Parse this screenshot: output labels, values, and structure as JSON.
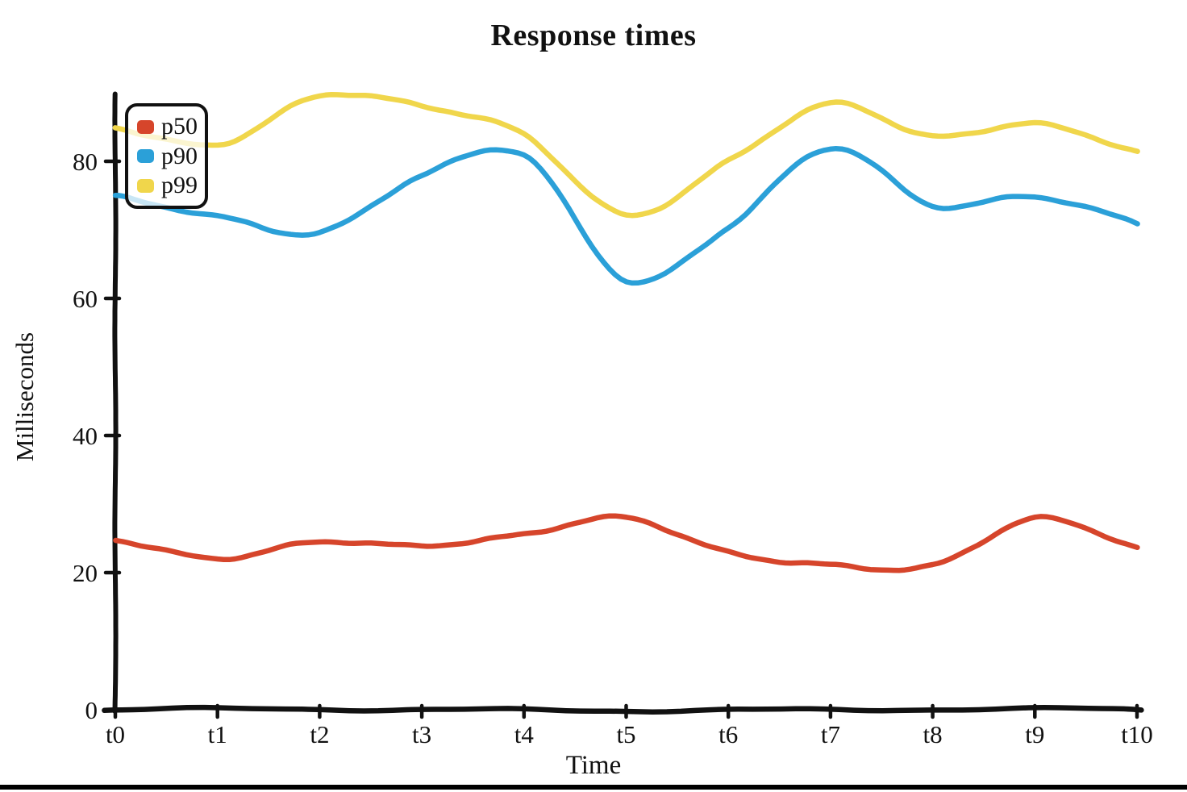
{
  "background": "#ffffff",
  "axis_color": "#111111",
  "chart_data": {
    "type": "line",
    "style": "xkcd-sketch",
    "title": "Response times",
    "xlabel": "Time",
    "ylabel": "Milliseconds",
    "categories": [
      "t0",
      "t1",
      "t2",
      "t3",
      "t4",
      "t5",
      "t6",
      "t7",
      "t8",
      "t9",
      "t10"
    ],
    "yticks": [
      0,
      20,
      40,
      60,
      80
    ],
    "ylim": [
      0,
      90
    ],
    "grid": false,
    "legend": {
      "position": "upper-left",
      "entries": [
        "p50",
        "p90",
        "p99"
      ]
    },
    "series": [
      {
        "name": "p50",
        "color": "#d6452b",
        "values": [
          25,
          22,
          24.5,
          24,
          25.5,
          28,
          23,
          21,
          21,
          28,
          23.5
        ]
      },
      {
        "name": "p90",
        "color": "#2ba0d8",
        "values": [
          75,
          72,
          69.5,
          78,
          81,
          62.5,
          70.5,
          82,
          73.5,
          75,
          71
        ]
      },
      {
        "name": "p99",
        "color": "#f0d64b",
        "values": [
          85,
          82.5,
          89.5,
          88,
          84,
          72,
          80,
          88.5,
          83.5,
          85.5,
          81.5
        ]
      }
    ]
  }
}
